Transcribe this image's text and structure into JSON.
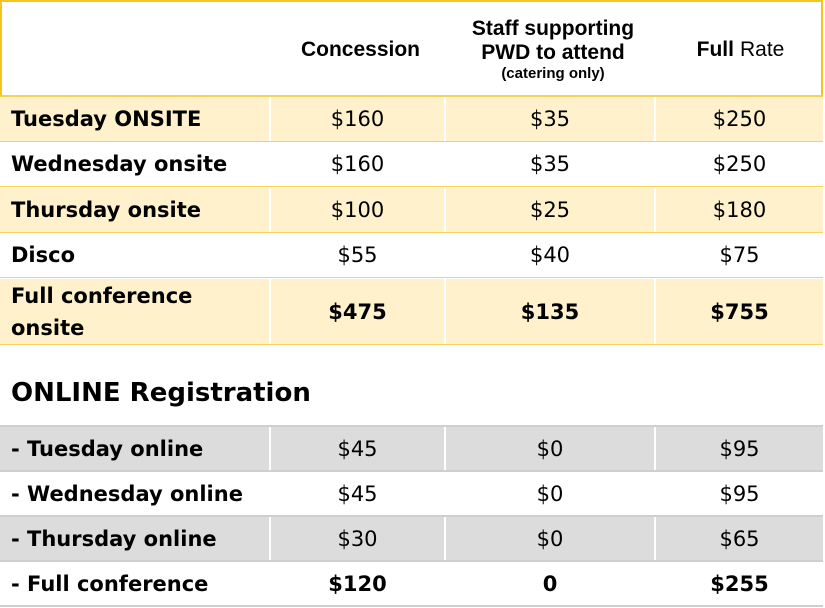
{
  "header": {
    "col1": "Concession",
    "col2_line1": "Staff supporting",
    "col2_line2": "PWD to attend",
    "col2_note": "(catering only)",
    "col3_bold": "Full",
    "col3_rest": "Rate"
  },
  "onsite_rows": [
    {
      "label": "Tuesday ONSITE",
      "concession": "$160",
      "staff": "$35",
      "full": "$250"
    },
    {
      "label": "Wednesday onsite",
      "concession": "$160",
      "staff": "$35",
      "full": "$250"
    },
    {
      "label": "Thursday onsite",
      "concession": "$100",
      "staff": "$25",
      "full": "$180"
    },
    {
      "label": "Disco",
      "concession": "$55",
      "staff": "$40",
      "full": "$75"
    },
    {
      "label": "Full conference onsite",
      "concession": "$475",
      "staff": "$135",
      "full": "$755"
    }
  ],
  "online_title": "ONLINE Registration",
  "online_rows": [
    {
      "label": "- Tuesday online",
      "concession": "$45",
      "staff": "$0",
      "full": "$95"
    },
    {
      "label": "- Wednesday online",
      "concession": "$45",
      "staff": "$0",
      "full": "$95"
    },
    {
      "label": "- Thursday online",
      "concession": "$30",
      "staff": "$0",
      "full": "$65"
    },
    {
      "label": "- Full conference",
      "concession": "$120",
      "staff": "0",
      "full": "$255"
    }
  ],
  "colors": {
    "header_border": "#f5c518",
    "onsite_band": "#fff1cc",
    "online_band": "#dcdcdc"
  }
}
